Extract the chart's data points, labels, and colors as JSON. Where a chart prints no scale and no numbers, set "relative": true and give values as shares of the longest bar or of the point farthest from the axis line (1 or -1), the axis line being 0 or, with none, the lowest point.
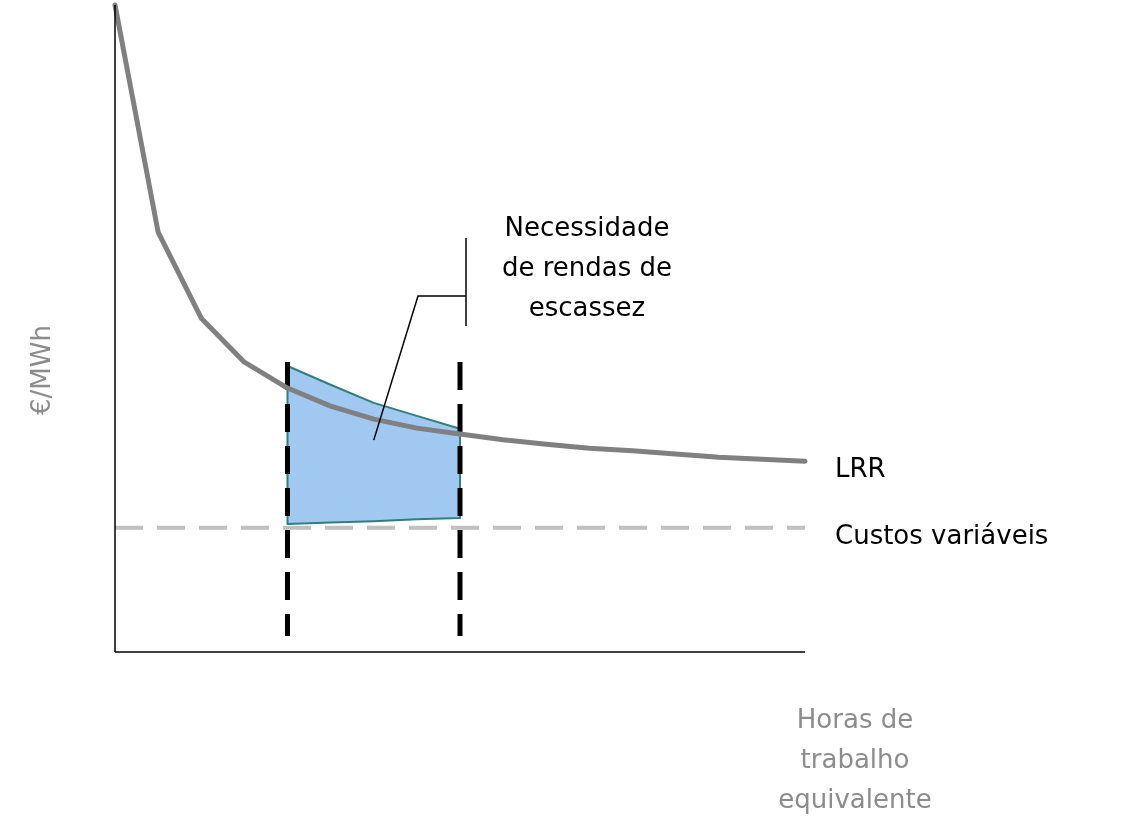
{
  "chart_data": {
    "type": "line",
    "relative": true,
    "xlabel": "Horas de trabalho equivalente",
    "ylabel": "€/MWh",
    "categories": [
      null,
      null,
      null,
      null,
      null,
      null,
      null,
      null,
      null,
      null,
      null,
      null,
      null,
      null,
      null,
      null,
      null
    ],
    "series": [
      {
        "name": "LRR",
        "color": "#808080",
        "values": [
          1,
          0.649,
          0.516,
          0.448,
          0.408,
          0.38,
          0.36,
          0.346,
          0.337,
          0.328,
          0.321,
          0.315,
          0.311,
          0.306,
          0.301,
          0.298,
          0.295
        ],
        "upper": [
          null,
          null,
          null,
          null,
          0.442,
          0.413,
          0.385,
          0.365,
          0.345,
          null,
          null,
          null,
          null,
          null,
          null,
          null,
          null
        ],
        "lower": [
          null,
          null,
          null,
          null,
          0.198,
          0.2,
          0.202,
          0.205,
          0.207,
          null,
          null,
          null,
          null,
          null,
          null,
          null,
          null
        ]
      }
    ],
    "ref_lines": [
      {
        "axis": "y",
        "value": 0.192,
        "label": "Custos variáveis",
        "color": "#c0c0c0",
        "line_style": "dashed"
      }
    ],
    "annotations": [
      "Necessidade de rendas de escassez"
    ]
  }
}
